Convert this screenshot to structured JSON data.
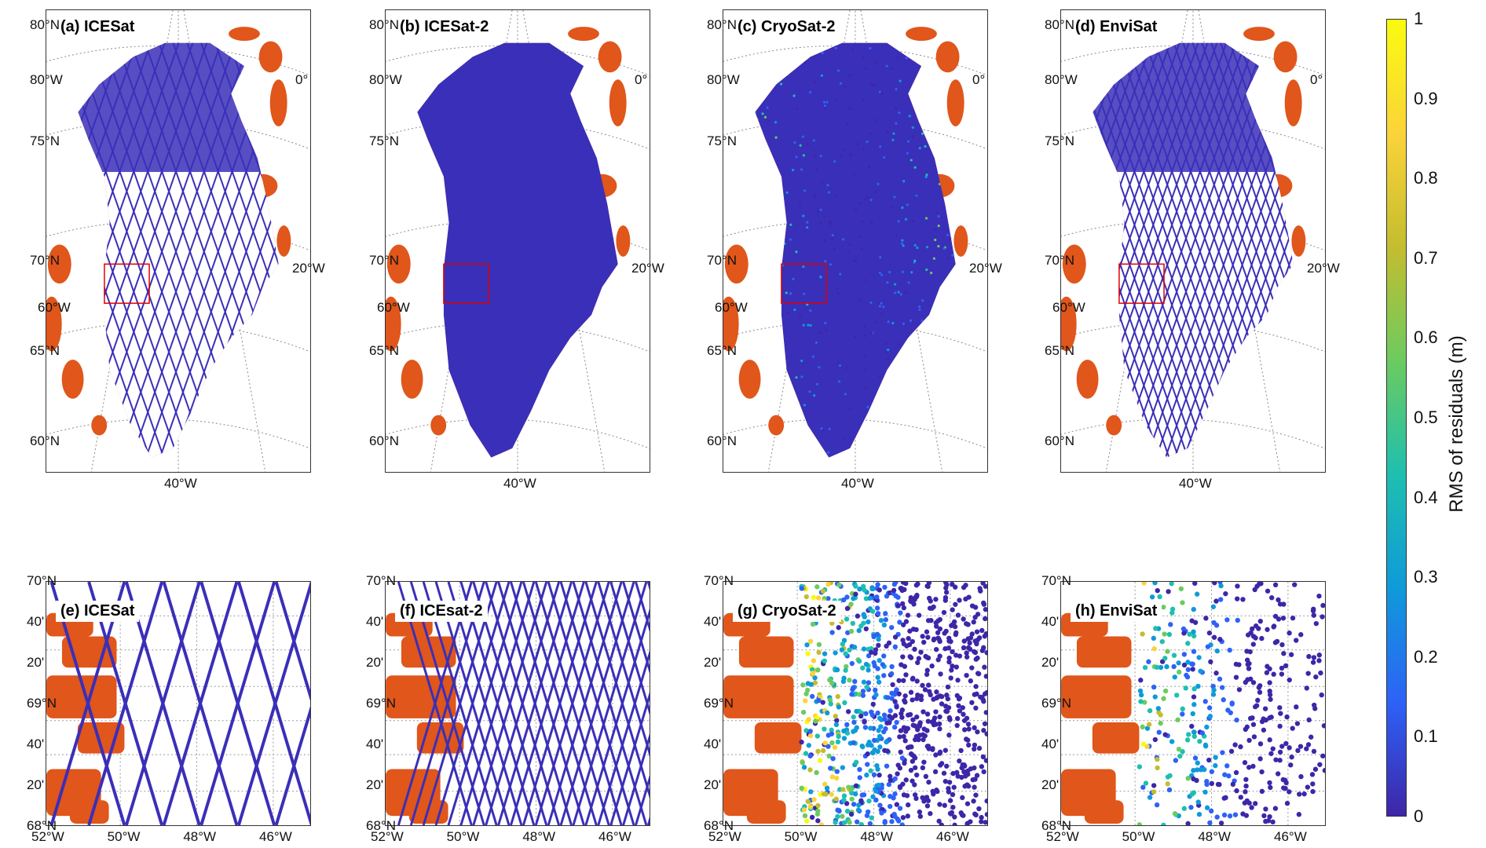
{
  "top_panels": [
    {
      "id": "a",
      "label": "(a) ICESat",
      "pattern": "tracks"
    },
    {
      "id": "b",
      "label": "(b) ICESat-2",
      "pattern": "dense"
    },
    {
      "id": "c",
      "label": "(c) CryoSat-2",
      "pattern": "noisy"
    },
    {
      "id": "d",
      "label": "(d) EnviSat",
      "pattern": "sparse"
    }
  ],
  "bottom_panels": [
    {
      "id": "e",
      "label": "(e) ICESat",
      "pattern": "tracks"
    },
    {
      "id": "f",
      "label": "(f) ICEsat-2",
      "pattern": "dense"
    },
    {
      "id": "g",
      "label": "(g) CryoSat-2",
      "pattern": "noisy"
    },
    {
      "id": "h",
      "label": "(h) EnviSat",
      "pattern": "sparse"
    }
  ],
  "top_ticks": {
    "lat_labels": [
      "80°N",
      "75°N",
      "70°N",
      "65°N",
      "60°N"
    ],
    "lon_labels": [
      "80°W",
      "60°W",
      "40°W",
      "20°W",
      "0°"
    ]
  },
  "bottom_ticks": {
    "lat_labels": [
      "70°N",
      "40'",
      "20'",
      "69°N",
      "40'",
      "20'",
      "68°N"
    ],
    "lon_labels": [
      "52°W",
      "50°W",
      "48°W",
      "46°W"
    ]
  },
  "colorbar": {
    "label": "RMS of residuals (m)",
    "ticks": [
      "1",
      "0.9",
      "0.8",
      "0.7",
      "0.6",
      "0.5",
      "0.4",
      "0.3",
      "0.2",
      "0.1",
      "0"
    ],
    "range": [
      0,
      1
    ],
    "colors": [
      "#3e26a8",
      "#2d62f7",
      "#0f9ad9",
      "#1ebfb0",
      "#6ccb5f",
      "#c4bd2f",
      "#fbd33a",
      "#f9fb0e"
    ]
  },
  "colors": {
    "land": "#e0561b",
    "ice_low": "#3a2fb8",
    "frame": "#333333"
  }
}
